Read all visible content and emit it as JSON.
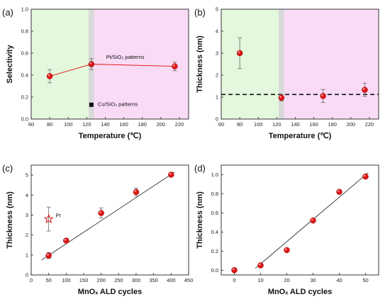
{
  "chart_data": [
    {
      "panel": "(a)",
      "type": "scatter",
      "xlabel": "Temperature (℃)",
      "ylabel": "Selectivity",
      "xlim": [
        60,
        230
      ],
      "ylim": [
        0.0,
        1.0
      ],
      "xticks": [
        60,
        80,
        100,
        120,
        140,
        160,
        180,
        200,
        220
      ],
      "yticks": [
        0.0,
        0.2,
        0.4,
        0.6,
        0.8,
        1.0
      ],
      "tick_decimals": 1,
      "regions": [
        {
          "from": 60,
          "to": 122,
          "color": "#e3f8dc"
        },
        {
          "from": 122,
          "to": 128,
          "color": "#d9d9d9"
        },
        {
          "from": 128,
          "to": 230,
          "color": "#f9dbf6"
        }
      ],
      "series": [
        {
          "name": "Pt/SiO₂ patterns",
          "marker": "circle",
          "color": "#e01515",
          "line": true,
          "x": [
            80,
            125,
            215
          ],
          "y": [
            0.39,
            0.5,
            0.48
          ],
          "err": [
            0.06,
            0.05,
            0.04
          ]
        },
        {
          "name": "Cu/SiO₂ patterns",
          "marker": "square",
          "color": "#111111",
          "line": false,
          "x": [
            125
          ],
          "y": [
            0.13
          ],
          "err": [
            0
          ]
        }
      ],
      "annotations": [
        {
          "text": "Pt/SiO₂ patterns",
          "x": 141,
          "y": 0.55
        },
        {
          "text": "Cu/SiO₂ patterns",
          "x": 132,
          "y": 0.12
        }
      ]
    },
    {
      "panel": "(b)",
      "type": "scatter",
      "xlabel": "Temperature (℃)",
      "ylabel": "Thickness (nm)",
      "xlim": [
        60,
        230
      ],
      "ylim": [
        0,
        5
      ],
      "xticks": [
        60,
        80,
        100,
        120,
        140,
        160,
        180,
        200,
        220
      ],
      "yticks": [
        0,
        1,
        2,
        3,
        4,
        5
      ],
      "tick_decimals": 0,
      "regions": [
        {
          "from": 60,
          "to": 122,
          "color": "#e3f8dc"
        },
        {
          "from": 122,
          "to": 128,
          "color": "#d9d9d9"
        },
        {
          "from": 128,
          "to": 230,
          "color": "#f9dbf6"
        }
      ],
      "hline": {
        "y": 1.12,
        "style": "dashed"
      },
      "series": [
        {
          "marker": "circle",
          "color": "#e01515",
          "line": false,
          "x": [
            80,
            125,
            170,
            215
          ],
          "y": [
            3.0,
            0.97,
            1.05,
            1.33
          ],
          "err": [
            0.7,
            0.15,
            0.3,
            0.3
          ]
        }
      ]
    },
    {
      "panel": "(c)",
      "type": "scatter",
      "xlabel": "MnOₓ ALD cycles",
      "ylabel": "Thickness (nm)",
      "xlim": [
        0,
        450
      ],
      "ylim": [
        0,
        5.5
      ],
      "xticks": [
        0,
        50,
        100,
        150,
        200,
        250,
        300,
        350,
        400,
        450
      ],
      "yticks": [
        0,
        1,
        2,
        3,
        4,
        5
      ],
      "tick_decimals": 0,
      "fit": {
        "x": [
          30,
          410
        ],
        "y": [
          0.75,
          5.15
        ]
      },
      "series": [
        {
          "marker": "circle",
          "color": "#e01515",
          "line": false,
          "x": [
            50,
            100,
            200,
            300,
            400
          ],
          "y": [
            0.97,
            1.72,
            3.1,
            4.15,
            5.02
          ],
          "err": [
            0.15,
            0.1,
            0.25,
            0.2,
            0.08
          ]
        },
        {
          "name": "Pt",
          "marker": "star",
          "color": "#e01515",
          "line": false,
          "x": [
            50
          ],
          "y": [
            2.8
          ],
          "err": [
            0.6
          ]
        }
      ],
      "annotations": [
        {
          "text": "Pt",
          "x": 70,
          "y": 2.9
        }
      ]
    },
    {
      "panel": "(d)",
      "type": "scatter",
      "xlabel": "MnOₓ ALD cycles",
      "ylabel": "Thickness (nm)",
      "xlim": [
        -5,
        55
      ],
      "ylim": [
        -0.05,
        1.1
      ],
      "xticks": [
        0,
        10,
        20,
        30,
        40,
        50
      ],
      "yticks": [
        0.0,
        0.2,
        0.4,
        0.6,
        0.8,
        1.0
      ],
      "tick_decimals": 1,
      "fit": {
        "x": [
          8,
          51
        ],
        "y": [
          0.02,
          1.02
        ]
      },
      "series": [
        {
          "marker": "circle",
          "color": "#e01515",
          "line": false,
          "x": [
            0,
            10,
            20,
            30,
            40,
            50
          ],
          "y": [
            0.0,
            0.05,
            0.21,
            0.52,
            0.82,
            0.98
          ],
          "err": [
            0,
            0,
            0,
            0,
            0,
            0
          ]
        }
      ]
    }
  ]
}
